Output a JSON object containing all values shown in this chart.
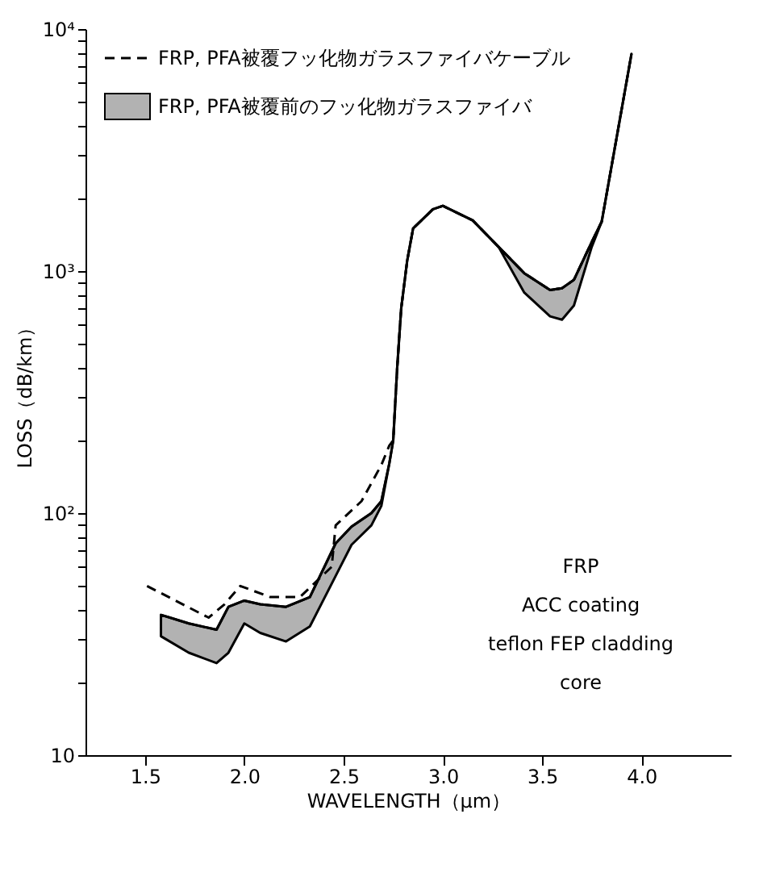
{
  "chart_data": {
    "type": "line",
    "xlabel": "WAVELENGTH（μm）",
    "ylabel": "LOSS（dB/km）",
    "xlim": [
      1.2,
      4.45
    ],
    "xticks": [
      1.5,
      {
        "value": 2,
        "label": "2.0"
      },
      2.5,
      {
        "value": 3,
        "label": "3.0"
      },
      3.5,
      {
        "value": 4,
        "label": "4.0"
      }
    ],
    "ylim": [
      10,
      10000
    ],
    "log": "y",
    "grid": false,
    "legend": "top left",
    "tick_labels": "xy",
    "yticks": [
      {
        "value": 10,
        "label": "10"
      },
      {
        "value": 20,
        "label": null
      },
      {
        "value": 30,
        "label": null
      },
      {
        "value": 40,
        "label": null
      },
      {
        "value": 50,
        "label": null
      },
      {
        "value": 60,
        "label": null
      },
      {
        "value": 70,
        "label": null
      },
      {
        "value": 80,
        "label": null
      },
      {
        "value": 90,
        "label": null
      },
      {
        "value": 100,
        "label": "10²"
      },
      {
        "value": 200,
        "label": null
      },
      {
        "value": 300,
        "label": null
      },
      {
        "value": 400,
        "label": null
      },
      {
        "value": 500,
        "label": null
      },
      {
        "value": 600,
        "label": null
      },
      {
        "value": 700,
        "label": null
      },
      {
        "value": 800,
        "label": null
      },
      {
        "value": 900,
        "label": null
      },
      {
        "value": 1000,
        "label": "10³"
      },
      {
        "value": 2000,
        "label": null
      },
      {
        "value": 3000,
        "label": null
      },
      {
        "value": 4000,
        "label": null
      },
      {
        "value": 5000,
        "label": null
      },
      {
        "value": 6000,
        "label": null
      },
      {
        "value": 7000,
        "label": null
      },
      {
        "value": 8000,
        "label": null
      },
      {
        "value": 9000,
        "label": null
      },
      {
        "value": 10000,
        "label": "10⁴"
      }
    ],
    "series": [
      {
        "name": "FRP, PFA被覆フッ化物ガラスファイバケーブル",
        "line_style": "dashed",
        "color": "#000000",
        "x": [
          1.51,
          1.82,
          1.9,
          1.98,
          2.13,
          2.28,
          2.44,
          2.46,
          2.59,
          2.69,
          2.73,
          2.75,
          2.77,
          2.79,
          2.82,
          2.85,
          2.95,
          3.0,
          3.15,
          3.28,
          3.41,
          3.54,
          3.6,
          3.66,
          3.75,
          3.8,
          3.95
        ],
        "values": [
          50,
          37,
          42,
          50,
          45,
          45,
          60,
          89,
          112,
          158,
          190,
          200,
          400,
          700,
          1100,
          1500,
          1800,
          1860,
          1620,
          1260,
          980,
          835,
          850,
          920,
          1320,
          1600,
          7900
        ]
      },
      {
        "name": "FRP, PFA被覆前のフッ化物ガラスファイバ",
        "line_style": "solid",
        "color": "#000000",
        "x": [
          1.58,
          1.72,
          1.86,
          1.92,
          2.0,
          2.08,
          2.21,
          2.33,
          2.46,
          2.54,
          2.64,
          2.69,
          2.73,
          2.75,
          2.77,
          2.79,
          2.82,
          2.85,
          2.95,
          3.0,
          3.15,
          3.28,
          3.41,
          3.54,
          3.6,
          3.66,
          3.75,
          3.8,
          3.95
        ],
        "values": [
          38,
          35,
          33,
          41,
          43.5,
          42,
          41,
          45,
          75,
          88,
          100,
          112,
          160,
          200,
          400,
          700,
          1100,
          1500,
          1800,
          1860,
          1620,
          1260,
          980,
          835,
          850,
          920,
          1320,
          1600,
          7900
        ],
        "upper": [
          38,
          35,
          33,
          41,
          43.5,
          42,
          41,
          45,
          75,
          88,
          100,
          112,
          160,
          200,
          400,
          700,
          1100,
          1500,
          1800,
          1860,
          1620,
          1260,
          980,
          835,
          850,
          920,
          1320,
          1600,
          7900
        ],
        "lower": [
          31,
          26.5,
          24,
          26.5,
          35,
          32,
          29.5,
          34,
          55,
          74,
          89,
          107,
          160,
          200,
          400,
          700,
          1100,
          1500,
          1800,
          1860,
          1620,
          1260,
          815,
          650,
          630,
          720,
          1260,
          1600,
          7900
        ]
      }
    ],
    "annotations": [
      "FRP",
      "ACC coating",
      "teflon FEP cladding",
      "core"
    ]
  }
}
